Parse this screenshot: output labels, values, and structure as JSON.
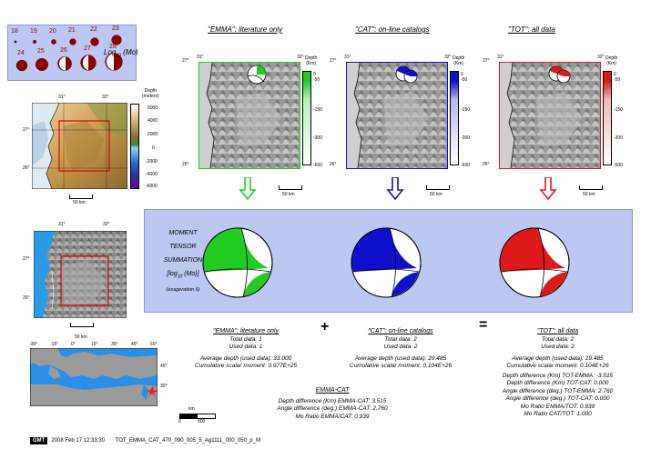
{
  "legend": {
    "magnitudes_row1": [
      "18",
      "19",
      "20",
      "21",
      "22",
      "23"
    ],
    "magnitudes_row2": [
      "24",
      "25",
      "26",
      "27",
      "28"
    ],
    "label": "Log",
    "label_sub": "10",
    "label_unit": "(Mo)"
  },
  "topo_map": {
    "lon_ticks": [
      "31°",
      "32°"
    ],
    "lat_ticks": [
      "27°",
      "26°"
    ],
    "colorbar_title": "Depth\n(meters)",
    "colorbar_title_1": "Depth",
    "colorbar_title_2": "(meters)",
    "colorbar_ticks": [
      "6000",
      "4000",
      "2000",
      "0",
      "-2000",
      "-4000",
      "-6000"
    ],
    "scale": "50 km"
  },
  "shade_map": {
    "lon_ticks": [
      "31°",
      "32°"
    ],
    "lat_ticks": [
      "27°",
      "26°"
    ],
    "scale": "50 km"
  },
  "world_map": {
    "lon_ticks": [
      "-30°",
      "-15°",
      "0°",
      "15°",
      "30°",
      "45°",
      "60°"
    ],
    "lat_ticks": [
      "45°",
      "30°"
    ],
    "scale_title": "km",
    "scale_ticks": [
      "0",
      "500"
    ]
  },
  "panels": [
    {
      "title": "\"EMMA\": literature only",
      "color": "#22cc22",
      "light": "#b8f0b8",
      "corner_lon_left": "31°",
      "corner_lon_right": "32°",
      "corner_lat_top": "27°",
      "corner_lat_bottom": "26°",
      "cb_title_1": "Depth",
      "cb_title_2": "(Km)",
      "cb_ticks": [
        "0",
        "-50",
        "-150",
        "-300",
        "-600"
      ],
      "scale": "50 km"
    },
    {
      "title": "\"CAT\": on-line catalogs",
      "color": "#1010cc",
      "light": "#b8b8f0",
      "corner_lon_left": "31°",
      "corner_lon_right": "32°",
      "corner_lat_top": "27°",
      "corner_lat_bottom": "26°",
      "cb_title_1": "Depth",
      "cb_title_2": "(Km)",
      "cb_ticks": [
        "0",
        "-50",
        "-150",
        "-300",
        "-600"
      ],
      "scale": "50 km"
    },
    {
      "title": "\"TOT\": all data",
      "color": "#dd1a1a",
      "light": "#f0b8b8",
      "corner_lon_left": "31°",
      "corner_lon_right": "32°",
      "corner_lat_top": "27°",
      "corner_lat_bottom": "26°",
      "cb_title_1": "Depth",
      "cb_title_2": "(Km)",
      "cb_ticks": [
        "0",
        "-50",
        "-150",
        "-300",
        "-600"
      ],
      "scale": "50 km"
    }
  ],
  "summation": {
    "line1": "MOMENT",
    "line2": "TENSOR",
    "line3": "SUMMATION",
    "line4": "[log",
    "line4_sub": "10",
    "line4_end": "(Mo)]",
    "line5": "(exageration 6)"
  },
  "operators": {
    "plus": "+",
    "equals": "="
  },
  "stats": {
    "emma": {
      "title": "\"EMMA\": literature only",
      "total": "Total data:    1",
      "used": "Used data:    1",
      "avg_depth": "Average depth (used data):  33.000",
      "moment": "Cumulative scalar moment:  0.977E+25"
    },
    "cat": {
      "title": "\"CAT\": on-line catalogs",
      "total": "Total data:    2",
      "used": "Used data:    2",
      "avg_depth": "Average depth (used data):  29.485",
      "moment": "Cumulative scalar moment:  0.104E+26"
    },
    "tot": {
      "title": "\"TOT\": all data",
      "total": "Total data:    2",
      "used": "Used data:    2",
      "avg_depth": "Average depth (used data):  29.485",
      "moment": "Cumulative scalar moment:  0.104E+26",
      "d1": "Depth difference (Km) TOT-EMMA:   -3.515",
      "d2": "Depth difference (Km) TOT-CAT:   0.000",
      "d3": "Angle difference (deg.) TOT-EMMA:   2.760",
      "d4": "Angle difference (deg.) TOT-CAT:   0.000",
      "d5": "Mo Ratio EMMA/TOT:   0.939",
      "d6": "Mo Ratio CAT/TOT:   1.000"
    },
    "emma_cat": {
      "title": "EMMA-CAT",
      "d1": "Depth difference (Km) EMMA-CAT:   3.515",
      "d2": "Angle difference (deg.) EMMA-CAT:   2.760",
      "d3": "Mo Ratio EMMA/CAT:   0.939"
    }
  },
  "footer": {
    "logo": "GMT",
    "date": "2008 Feb 17 12:33:30",
    "file": "TOT_EMMA_CAT_470_090_005_5_Ag1111_000_050_p_M"
  }
}
